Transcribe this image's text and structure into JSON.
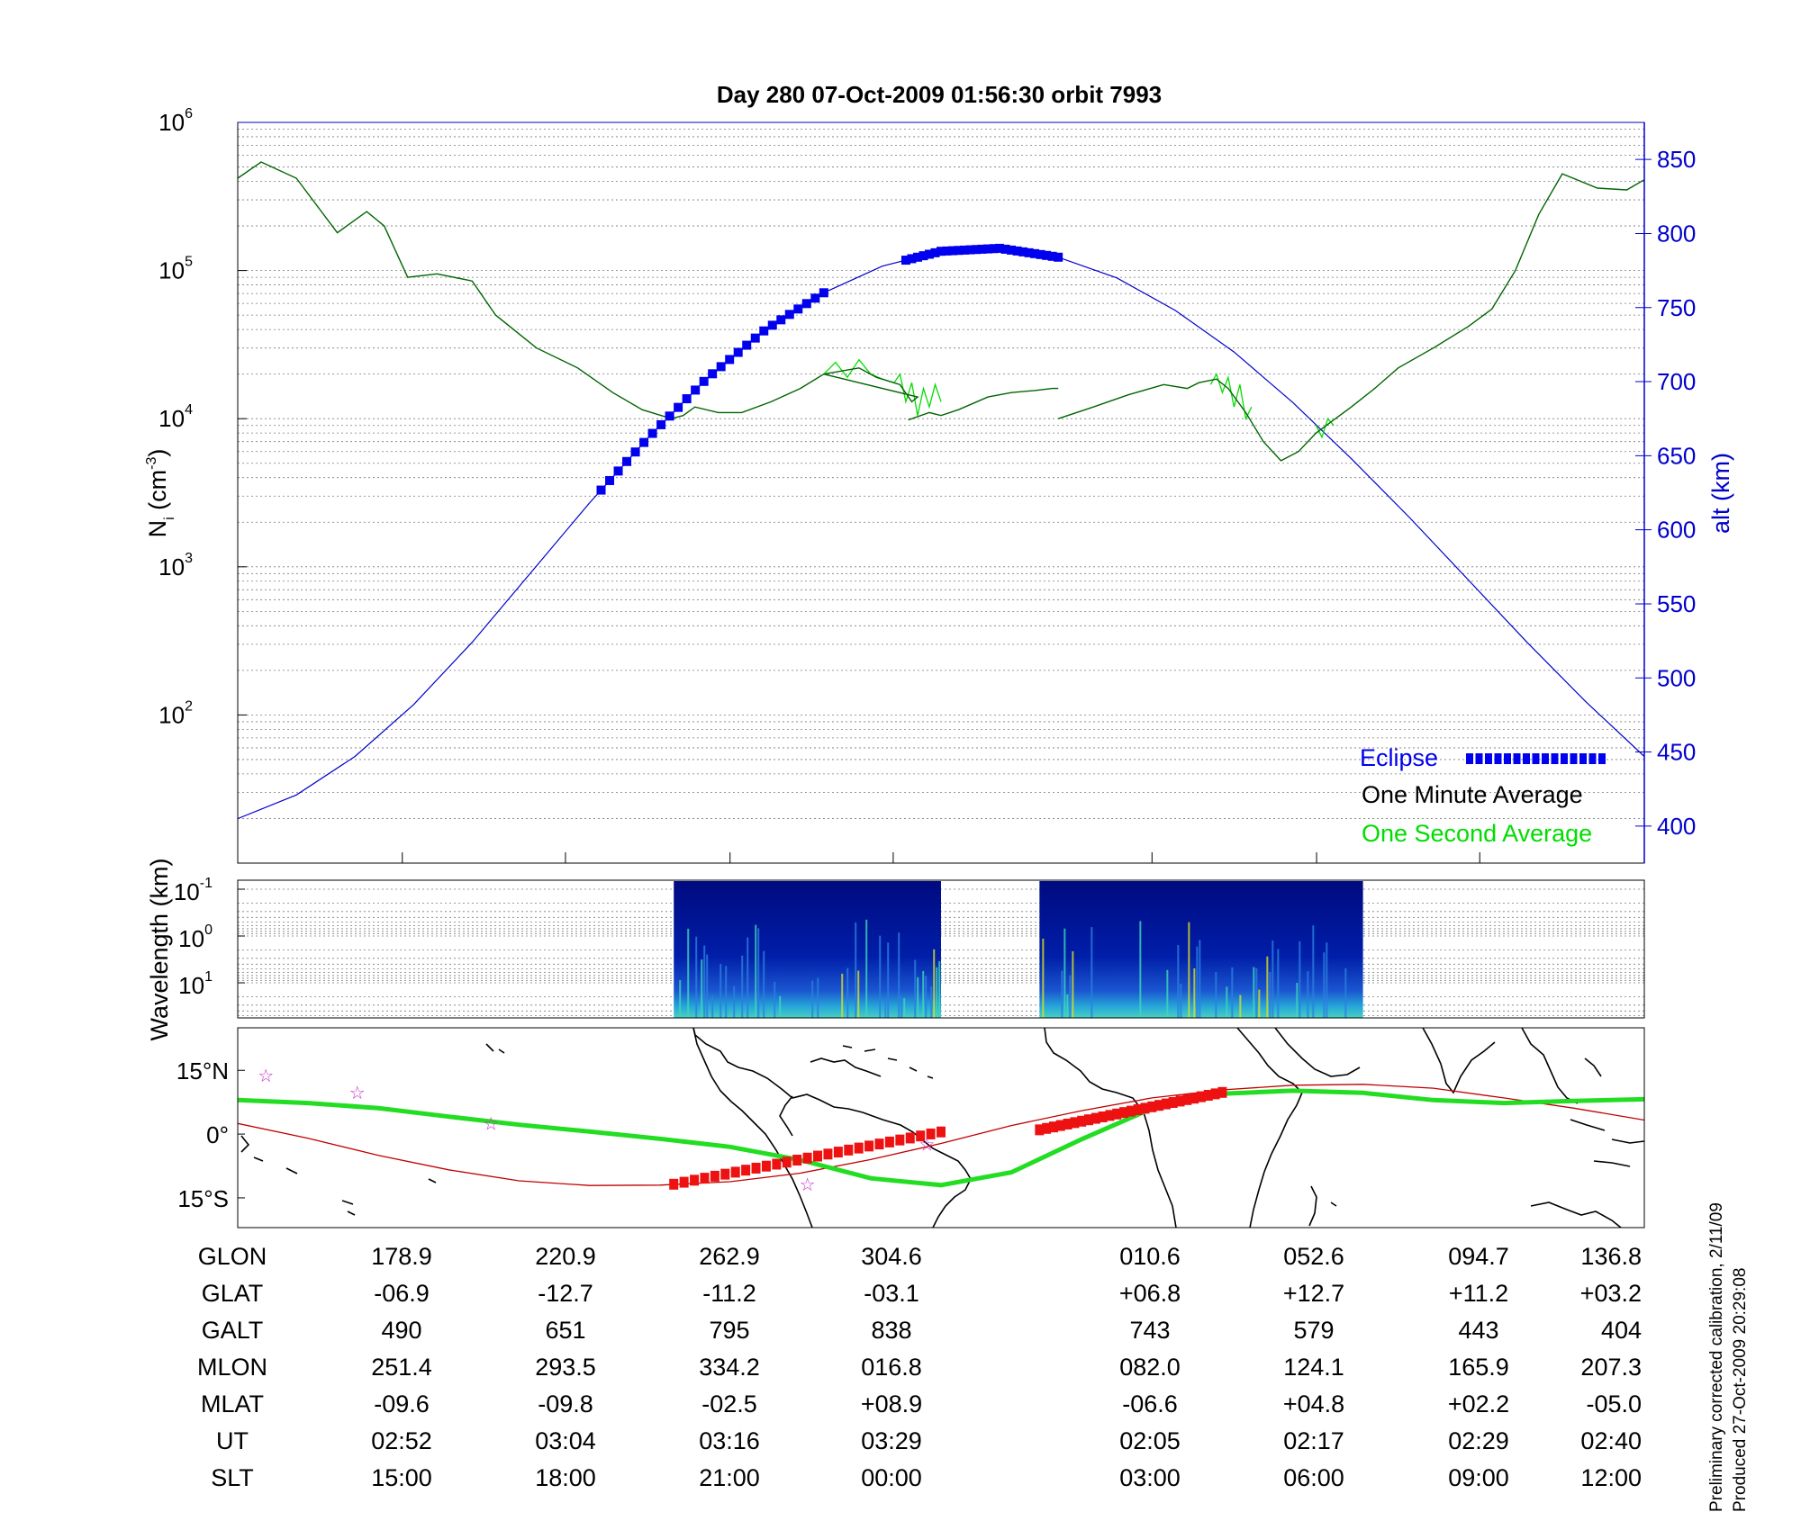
{
  "title": "Day 280  07-Oct-2009 01:56:30   orbit 7993",
  "colors": {
    "one_minute": "#006400",
    "one_second": "#00dd00",
    "altitude": "#0000cc",
    "eclipse": "#0000ee",
    "track": "#22dd22",
    "magnetic_equator": "#c00000",
    "eclipse_track": "#ee1111",
    "star": "#cc33cc"
  },
  "legend": {
    "eclipse": "Eclipse",
    "one_minute": "One Minute Average",
    "one_second": "One Second Average"
  },
  "footer_note": {
    "line1": "Preliminary corrected calibration, 2/11/09",
    "line2": "Produced 27-Oct-2009 20:29:08"
  },
  "table": {
    "rows": [
      "GLON",
      "GLAT",
      "GALT",
      "MLON",
      "MLAT",
      "UT",
      "SLT"
    ],
    "columns": [
      [
        "178.9",
        "-06.9",
        "490",
        "251.4",
        "-09.6",
        "02:52",
        "15:00"
      ],
      [
        "220.9",
        "-12.7",
        "651",
        "293.5",
        "-09.8",
        "03:04",
        "18:00"
      ],
      [
        "262.9",
        "-11.2",
        "795",
        "334.2",
        "-02.5",
        "03:16",
        "21:00"
      ],
      [
        "304.6",
        "-03.1",
        "838",
        "016.8",
        "+08.9",
        "03:29",
        "00:00"
      ],
      [
        "010.6",
        "+06.8",
        "743",
        "082.0",
        "-06.6",
        "02:05",
        "03:00"
      ],
      [
        "052.6",
        "+12.7",
        "579",
        "124.1",
        "+04.8",
        "02:17",
        "06:00"
      ],
      [
        "094.7",
        "+11.2",
        "443",
        "165.9",
        "+02.2",
        "02:29",
        "09:00"
      ],
      [
        "136.8",
        "+03.2",
        "404",
        "207.3",
        "-05.0",
        "02:40",
        "12:00"
      ]
    ]
  },
  "chart_data": [
    {
      "type": "line",
      "panel": "density",
      "ylabel": "N",
      "ylabel_sub": "i",
      "ylabel_unit_pre": "(cm",
      "ylabel_unit_sup": "-3",
      "ylabel_unit_post": ")",
      "ylabel_right": "alt (km)",
      "yscale": "log",
      "ylim": [
        10,
        1000000
      ],
      "y_ticks": [
        {
          "base": "10",
          "exp": "2"
        },
        {
          "base": "10",
          "exp": "3"
        },
        {
          "base": "10",
          "exp": "4"
        },
        {
          "base": "10",
          "exp": "5"
        },
        {
          "base": "10",
          "exp": "6"
        }
      ],
      "y2lim": [
        375,
        875
      ],
      "y2_ticks": [
        "400",
        "450",
        "500",
        "550",
        "600",
        "650",
        "700",
        "750",
        "800",
        "850"
      ],
      "x_tick_count": 8,
      "series": [
        {
          "name": "One Minute Average",
          "segments": [
            [
              [
                0.0,
                420000
              ],
              [
                0.02,
                540000
              ],
              [
                0.05,
                420000
              ],
              [
                0.085,
                180000
              ],
              [
                0.11,
                250000
              ],
              [
                0.125,
                200000
              ],
              [
                0.145,
                90000
              ],
              [
                0.17,
                95000
              ],
              [
                0.2,
                85000
              ],
              [
                0.22,
                50000
              ],
              [
                0.255,
                30000
              ],
              [
                0.29,
                22000
              ],
              [
                0.32,
                15000
              ],
              [
                0.345,
                11500
              ],
              [
                0.37,
                10000
              ],
              [
                0.38,
                10500
              ],
              [
                0.39,
                12000
              ],
              [
                0.41,
                11000
              ],
              [
                0.43,
                11000
              ],
              [
                0.455,
                13000
              ],
              [
                0.48,
                16000
              ],
              [
                0.5,
                20000
              ],
              [
                0.53,
                22000
              ],
              [
                0.545,
                19000
              ],
              [
                0.565,
                17000
              ],
              [
                0.575,
                13000
              ],
              [
                0.58,
                14000
              ],
              [
                0.5,
                20000
              ]
            ],
            [
              [
                0.572,
                9800
              ],
              [
                0.59,
                11000
              ],
              [
                0.6,
                10500
              ],
              [
                0.615,
                11500
              ],
              [
                0.64,
                14000
              ],
              [
                0.66,
                15000
              ],
              [
                0.68,
                15500
              ],
              [
                0.695,
                16000
              ],
              [
                0.7,
                16000
              ],
              [
                0.7,
                16000
              ]
            ],
            [
              [
                0.7,
                10000
              ],
              [
                0.73,
                12000
              ],
              [
                0.76,
                14500
              ],
              [
                0.79,
                17000
              ],
              [
                0.81,
                16000
              ],
              [
                0.82,
                17500
              ],
              [
                0.835,
                18500
              ],
              [
                0.845,
                16000
              ],
              [
                0.86,
                11000
              ],
              [
                0.875,
                7000
              ],
              [
                0.89,
                5200
              ],
              [
                0.905,
                6000
              ],
              [
                0.92,
                8000
              ],
              [
                0.935,
                9800
              ],
              [
                0.95,
                12000
              ],
              [
                0.97,
                16000
              ],
              [
                0.99,
                22000
              ],
              [
                1.02,
                30000
              ],
              [
                1.05,
                42000
              ],
              [
                1.07,
                55000
              ],
              [
                1.09,
                100000
              ],
              [
                1.11,
                240000
              ],
              [
                1.13,
                450000
              ],
              [
                1.16,
                360000
              ],
              [
                1.185,
                350000
              ],
              [
                1.2,
                410000
              ]
            ]
          ]
        },
        {
          "name": "One Second Average",
          "segments": [
            [
              [
                0.5,
                20000
              ],
              [
                0.51,
                24000
              ],
              [
                0.52,
                19000
              ],
              [
                0.53,
                25000
              ],
              [
                0.54,
                20000
              ],
              [
                0.55,
                18500
              ],
              [
                0.56,
                17500
              ],
              [
                0.565,
                20000
              ],
              [
                0.57,
                13000
              ],
              [
                0.575,
                17500
              ],
              [
                0.58,
                10500
              ],
              [
                0.585,
                16000
              ],
              [
                0.59,
                12000
              ],
              [
                0.595,
                17000
              ],
              [
                0.6,
                13000
              ]
            ],
            [
              [
                0.83,
                17000
              ],
              [
                0.835,
                20000
              ],
              [
                0.84,
                15000
              ],
              [
                0.845,
                19000
              ],
              [
                0.85,
                12000
              ],
              [
                0.855,
                17000
              ],
              [
                0.86,
                10000
              ],
              [
                0.865,
                12000
              ]
            ],
            [
              [
                0.92,
                9000
              ],
              [
                0.925,
                7500
              ],
              [
                0.93,
                10000
              ],
              [
                0.935,
                9000
              ]
            ]
          ]
        },
        {
          "name": "alt (km)",
          "axis": "right",
          "x": [
            0.0,
            0.05,
            0.1,
            0.15,
            0.2,
            0.25,
            0.3,
            0.35,
            0.4,
            0.45,
            0.5,
            0.55,
            0.6,
            0.65,
            0.7,
            0.75,
            0.8,
            0.85,
            0.9,
            0.95,
            1.0,
            1.05,
            1.1,
            1.15,
            1.2
          ],
          "y": [
            405,
            421,
            447,
            482,
            524,
            571,
            618,
            662,
            702,
            735,
            760,
            778,
            788,
            790,
            784,
            770,
            748,
            720,
            686,
            648,
            608,
            566,
            524,
            484,
            447
          ]
        }
      ],
      "eclipse": [
        {
          "x": [
            0.31,
            0.5
          ],
          "alt": [
            756,
            840,
            822
          ]
        },
        {
          "x": [
            0.57,
            0.7
          ],
          "alt": [
            819,
            735,
            660
          ]
        }
      ]
    },
    {
      "type": "heatmap",
      "panel": "spectrogram",
      "ylabel": "Wavelength (km)",
      "yscale": "log",
      "y_ticks": [
        {
          "base": "10",
          "exp": "-1"
        },
        {
          "base": "10",
          "exp": "0"
        },
        {
          "base": "10",
          "exp": "1"
        }
      ],
      "data_blocks": [
        [
          0.31,
          0.5
        ],
        [
          0.57,
          0.8
        ]
      ]
    },
    {
      "type": "map",
      "panel": "ground-track",
      "y_ticks": [
        "15°N",
        "0°",
        "15°S"
      ],
      "ylim": [
        -22,
        25
      ],
      "track": {
        "x": [
          0.0,
          0.05,
          0.1,
          0.15,
          0.2,
          0.25,
          0.3,
          0.35,
          0.4,
          0.45,
          0.5,
          0.55,
          0.6,
          0.65,
          0.7,
          0.75,
          0.8,
          0.85,
          0.9,
          0.95,
          1.0
        ],
        "lat": [
          8,
          7.3,
          6.1,
          4.1,
          2.2,
          0.6,
          -1.1,
          -3.0,
          -6.1,
          -10.4,
          -12.0,
          -9.0,
          -1.2,
          6.0,
          9.5,
          10.2,
          9.7,
          8.0,
          7.3,
          7.8,
          8.2
        ]
      },
      "magnetic_equator": {
        "x": [
          0.0,
          0.05,
          0.1,
          0.15,
          0.2,
          0.25,
          0.3,
          0.35,
          0.4,
          0.45,
          0.5,
          0.55,
          0.6,
          0.65,
          0.7,
          0.75,
          0.8,
          0.85,
          0.9,
          0.95,
          1.0
        ],
        "lat": [
          2.5,
          -1.0,
          -5.0,
          -8.4,
          -11.0,
          -12.1,
          -12.0,
          -11.2,
          -9.2,
          -6.0,
          -2.2,
          2.0,
          5.5,
          8.5,
          10.4,
          11.5,
          11.7,
          10.8,
          8.5,
          6.1,
          3.3
        ]
      },
      "eclipse_track": [
        {
          "x": [
            0.31,
            0.5
          ],
          "lat": [
            -11.8,
            0.5
          ]
        },
        {
          "x": [
            0.57,
            0.7
          ],
          "lat": [
            1.0,
            9.8
          ]
        }
      ],
      "stars": [
        {
          "x": 0.02,
          "lat": 13.8
        },
        {
          "x": 0.085,
          "lat": 9.8
        },
        {
          "x": 0.18,
          "lat": 2.5
        },
        {
          "x": 0.405,
          "lat": -11.8
        },
        {
          "x": 0.49,
          "lat": -2.4
        }
      ]
    }
  ]
}
